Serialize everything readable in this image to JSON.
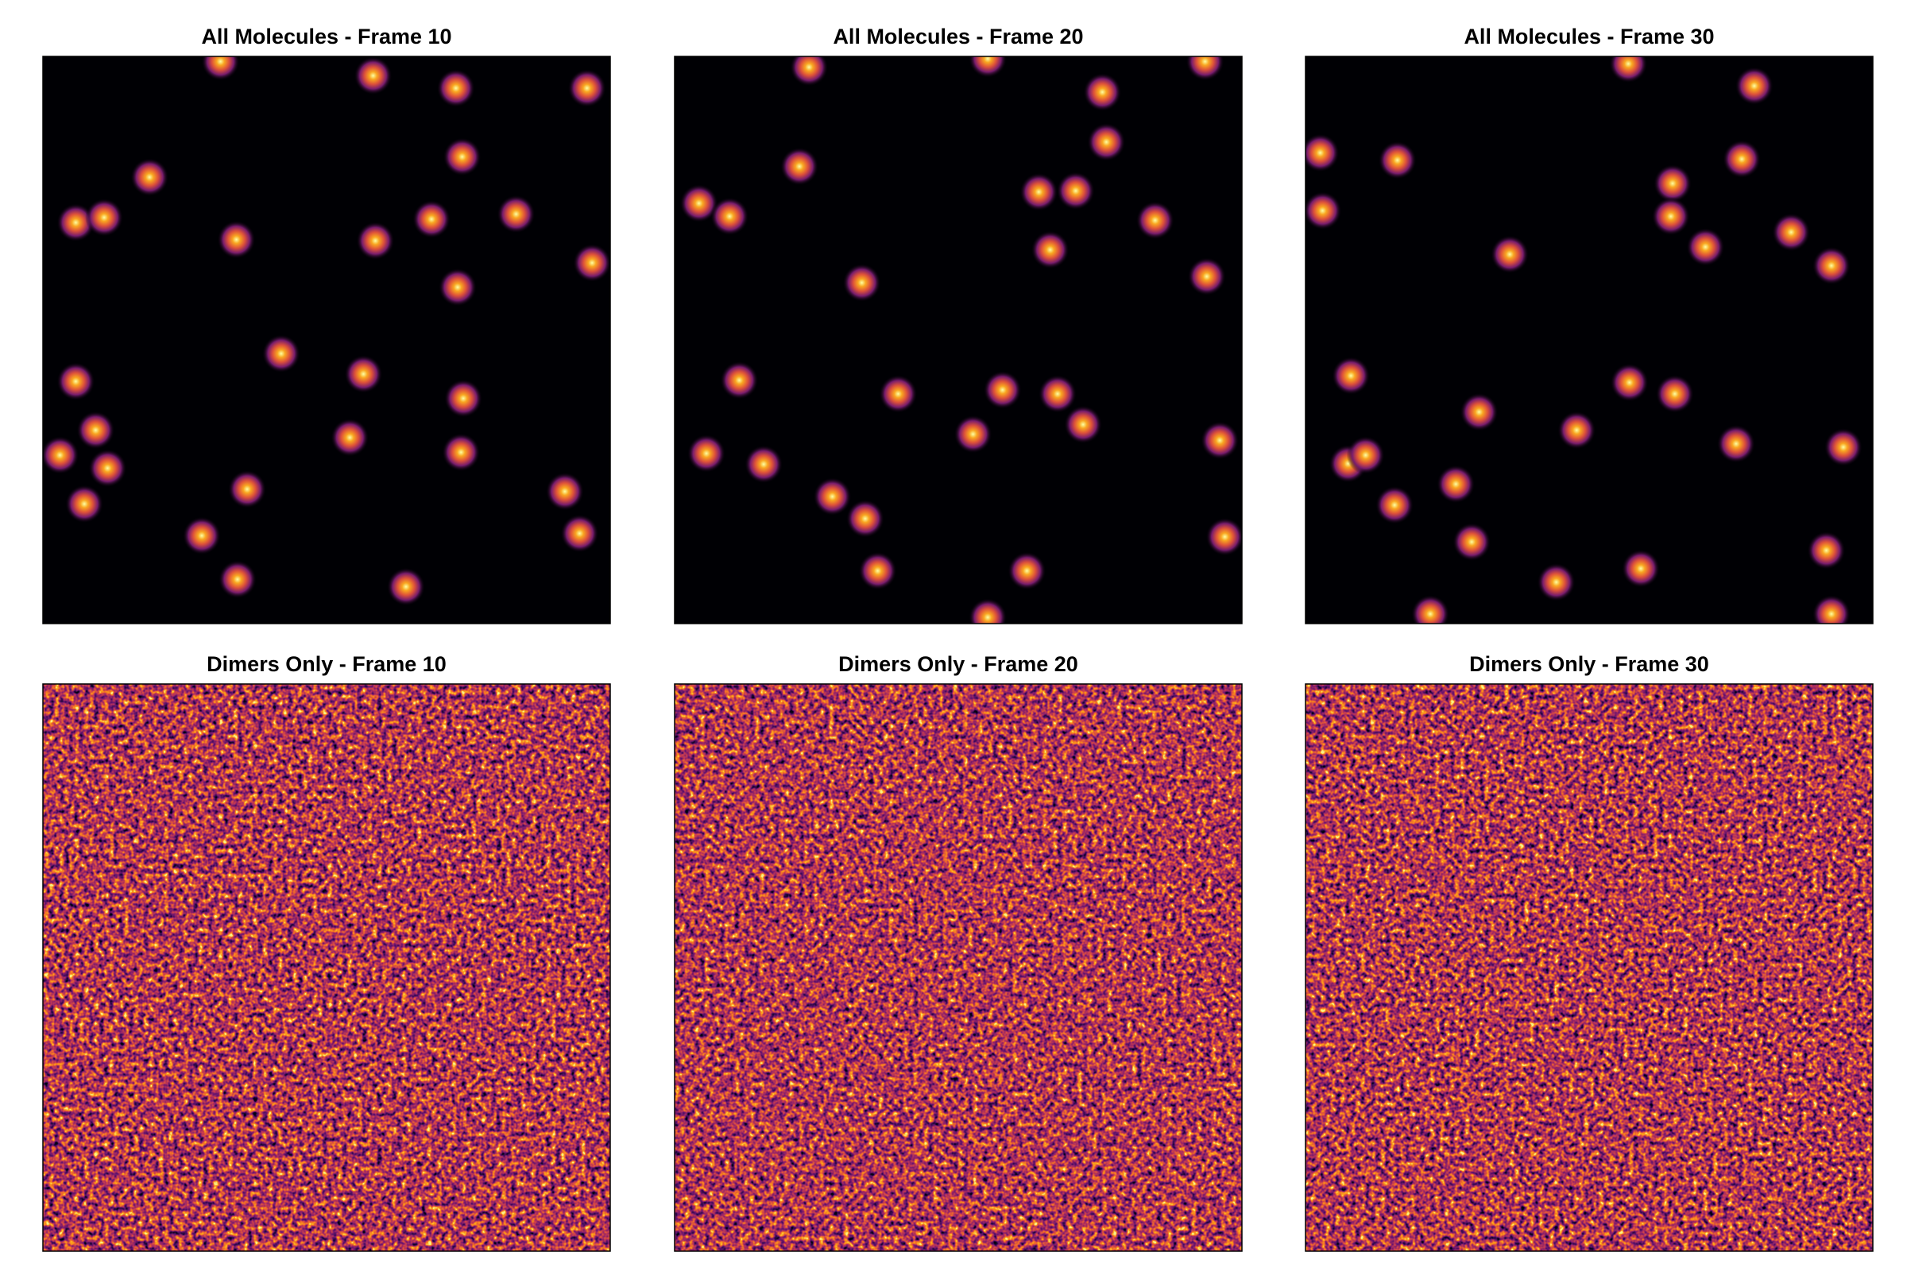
{
  "chart_data": [
    {
      "type": "spots",
      "title": "All Molecules - Frame 10",
      "x": [
        31.3,
        58.2,
        72.8,
        95.9,
        18.8,
        73.9,
        5.8,
        10.8,
        34.1,
        58.6,
        68.5,
        83.4,
        96.8,
        73.1,
        42.0,
        5.8,
        56.5,
        74.1,
        9.3,
        3.0,
        11.4,
        54.1,
        73.7,
        7.3,
        36.0,
        92.0,
        94.6,
        28.0,
        34.3,
        64.0
      ],
      "y": [
        0.9,
        3.4,
        5.6,
        5.6,
        21.3,
        17.7,
        29.3,
        28.4,
        32.3,
        32.5,
        28.7,
        27.8,
        36.4,
        40.7,
        52.4,
        57.3,
        56.0,
        60.3,
        65.9,
        70.3,
        72.6,
        67.2,
        69.8,
        78.9,
        76.3,
        76.7,
        84.1,
        84.5,
        92.2,
        93.5
      ]
    },
    {
      "type": "spots",
      "title": "All Molecules - Frame 20",
      "x": [
        23.7,
        55.2,
        93.5,
        75.4,
        76.1,
        22.0,
        64.2,
        70.7,
        4.3,
        9.7,
        84.7,
        66.2,
        93.8,
        33.0,
        11.4,
        39.4,
        57.8,
        67.5,
        72.0,
        52.6,
        96.1,
        5.6,
        15.7,
        27.8,
        33.6,
        35.8,
        62.1,
        97.0,
        55.2
      ],
      "y": [
        1.9,
        0.4,
        0.9,
        6.3,
        15.1,
        19.4,
        23.9,
        23.7,
        25.9,
        28.2,
        28.9,
        34.1,
        38.8,
        39.9,
        57.1,
        59.5,
        58.8,
        59.5,
        64.9,
        66.6,
        67.7,
        70.0,
        71.9,
        77.6,
        81.5,
        90.7,
        90.7,
        84.7,
        98.9
      ]
    },
    {
      "type": "spots",
      "title": "All Molecules - Frame 30",
      "x": [
        56.9,
        79.1,
        2.6,
        16.2,
        76.9,
        64.7,
        64.4,
        3.0,
        70.5,
        85.6,
        92.7,
        36.0,
        8.0,
        57.1,
        65.1,
        30.6,
        47.8,
        75.9,
        94.8,
        7.5,
        10.6,
        26.5,
        15.7,
        29.3,
        59.1,
        44.2,
        91.8,
        22.0,
        92.7
      ],
      "y": [
        1.3,
        5.2,
        17.0,
        18.3,
        18.1,
        22.4,
        28.2,
        27.2,
        33.6,
        31.0,
        36.9,
        34.9,
        56.3,
        57.5,
        59.5,
        62.7,
        65.9,
        68.3,
        68.9,
        71.8,
        70.3,
        75.4,
        79.1,
        85.6,
        90.3,
        92.7,
        87.1,
        98.3,
        98.3
      ]
    },
    {
      "type": "noise",
      "title": "Dimers Only - Frame 10"
    },
    {
      "type": "noise",
      "title": "Dimers Only - Frame 20"
    },
    {
      "type": "noise",
      "title": "Dimers Only - Frame 30"
    }
  ]
}
